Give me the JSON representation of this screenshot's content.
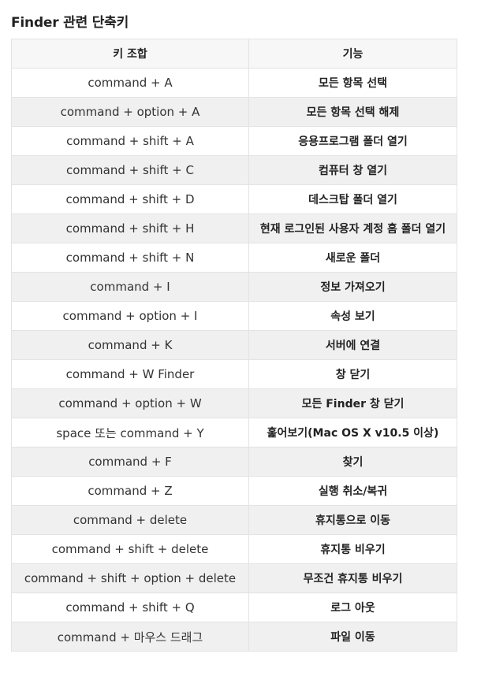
{
  "title": "Finder 관련 단축키",
  "table": {
    "headers": [
      "키 조합",
      "기능"
    ],
    "rows": [
      {
        "key": "command + A",
        "function": "모든 항목 선택"
      },
      {
        "key": "command + option + A",
        "function": "모든 항목 선택 해제"
      },
      {
        "key": "command + shift + A",
        "function": "응용프로그램 폴더 열기"
      },
      {
        "key": "command + shift + C",
        "function": "컴퓨터 창 열기"
      },
      {
        "key": "command + shift + D",
        "function": "데스크탑 폴더 열기"
      },
      {
        "key": "command + shift + H",
        "function": "현재 로그인된 사용자 계정 홈 폴더 열기"
      },
      {
        "key": "command + shift + N",
        "function": "새로운 폴더"
      },
      {
        "key": "command + I",
        "function": "정보 가져오기"
      },
      {
        "key": "command + option + I",
        "function": "속성 보기"
      },
      {
        "key": "command + K",
        "function": "서버에 연결"
      },
      {
        "key": "command + W Finder",
        "function": "창 닫기"
      },
      {
        "key": "command + option + W",
        "function": "모든 Finder 창 닫기"
      },
      {
        "key": "space 또는 command + Y",
        "function": "훑어보기(Mac OS X v10.5 이상)"
      },
      {
        "key": "command + F",
        "function": "찾기"
      },
      {
        "key": "command + Z",
        "function": "실행 취소/복귀"
      },
      {
        "key": "command + delete",
        "function": "휴지통으로 이동"
      },
      {
        "key": "command + shift + delete",
        "function": "휴지통 비우기"
      },
      {
        "key": "command + shift + option + delete",
        "function": "무조건 휴지통 비우기"
      },
      {
        "key": "command + shift + Q",
        "function": "로그 아웃"
      },
      {
        "key": "command + 마우스 드래그",
        "function": "파일 이동"
      }
    ]
  }
}
